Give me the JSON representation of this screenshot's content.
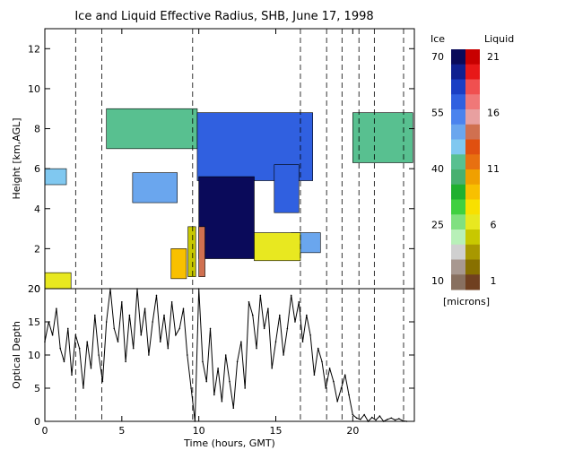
{
  "title": "Ice and Liquid Effective Radius, SHB, June 17, 1998",
  "chart_data": [
    {
      "type": "heatmap",
      "ylabel": "Height [km,AGL]",
      "yticks": [
        "0",
        "2",
        "4",
        "6",
        "8",
        "10",
        "12"
      ],
      "ylim": [
        0,
        13
      ],
      "xlim": [
        0,
        24
      ],
      "legend": {
        "ice_label": "Ice",
        "liquid_label": "Liquid",
        "units": "[microns]",
        "ice_ticks": [
          "70",
          "55",
          "40",
          "25",
          "10"
        ],
        "liquid_ticks": [
          "21",
          "16",
          "11",
          "6",
          "1"
        ],
        "ice_colors": [
          "#0a0a5a",
          "#102090",
          "#1a3ec4",
          "#3060e0",
          "#4b83ee",
          "#6aa6ee",
          "#80c8f0",
          "#58c090",
          "#48b070",
          "#20b030",
          "#40d040",
          "#80e080",
          "#b8f0b8",
          "#d0d0d0",
          "#a89890",
          "#887060"
        ],
        "liquid_colors": [
          "#c80000",
          "#e81818",
          "#f05050",
          "#f07878",
          "#e8a0a0",
          "#d07050",
          "#e05010",
          "#e87010",
          "#f0a000",
          "#f8c000",
          "#f8e000",
          "#e8e820",
          "#c8c800",
          "#a89800",
          "#887000",
          "#704020"
        ]
      },
      "dashed_times": [
        2.0,
        3.7,
        9.6,
        16.6,
        18.3,
        19.3,
        20.4,
        21.4,
        23.3
      ],
      "ice_clouds": [
        {
          "t": [
            4.0,
            9.9
          ],
          "z": [
            7.0,
            9.0
          ],
          "r": 42
        },
        {
          "t": [
            0.0,
            1.4
          ],
          "z": [
            5.2,
            6.0
          ],
          "r": 48
        },
        {
          "t": [
            5.7,
            8.6
          ],
          "z": [
            4.3,
            5.8
          ],
          "r": 50
        },
        {
          "t": [
            9.9,
            17.4
          ],
          "z": [
            5.4,
            8.8
          ],
          "r": 56
        },
        {
          "t": [
            10.0,
            13.6
          ],
          "z": [
            1.5,
            5.6
          ],
          "r": 68
        },
        {
          "t": [
            14.9,
            16.5
          ],
          "z": [
            3.8,
            6.2
          ],
          "r": 58
        },
        {
          "t": [
            20.0,
            23.9
          ],
          "z": [
            6.3,
            8.8
          ],
          "r": 42
        },
        {
          "t": [
            16.0,
            17.9
          ],
          "z": [
            1.8,
            2.8
          ],
          "r": 50
        }
      ],
      "liquid_clouds": [
        {
          "t": [
            0.0,
            1.7
          ],
          "z": [
            0.0,
            0.8
          ],
          "r": 7
        },
        {
          "t": [
            9.3,
            9.8
          ],
          "z": [
            0.6,
            3.1
          ],
          "r": 5
        },
        {
          "t": [
            10.0,
            10.4
          ],
          "z": [
            0.6,
            3.1
          ],
          "r": 14
        },
        {
          "t": [
            13.6,
            16.6
          ],
          "z": [
            1.4,
            2.8
          ],
          "r": 7
        },
        {
          "t": [
            8.2,
            9.2
          ],
          "z": [
            0.5,
            2.0
          ],
          "r": 9
        }
      ]
    },
    {
      "type": "line",
      "xlabel": "Time (hours, GMT)",
      "ylabel": "Optical Depth",
      "xticks": [
        "0",
        "5",
        "10",
        "15",
        "20"
      ],
      "yticks": [
        "0",
        "5",
        "10",
        "15",
        "20"
      ],
      "xlim": [
        0,
        24
      ],
      "ylim": [
        0,
        20
      ],
      "x": [
        0.0,
        0.25,
        0.5,
        0.75,
        1.0,
        1.25,
        1.5,
        1.75,
        2.0,
        2.25,
        2.5,
        2.75,
        3.0,
        3.25,
        3.5,
        3.75,
        4.0,
        4.25,
        4.5,
        4.75,
        5.0,
        5.25,
        5.5,
        5.75,
        6.0,
        6.25,
        6.5,
        6.75,
        7.0,
        7.25,
        7.5,
        7.75,
        8.0,
        8.25,
        8.5,
        8.75,
        9.0,
        9.25,
        9.5,
        9.75,
        10.0,
        10.25,
        10.5,
        10.75,
        11.0,
        11.25,
        11.5,
        11.75,
        12.0,
        12.25,
        12.5,
        12.75,
        13.0,
        13.25,
        13.5,
        13.75,
        14.0,
        14.25,
        14.5,
        14.75,
        15.0,
        15.25,
        15.5,
        15.75,
        16.0,
        16.25,
        16.5,
        16.75,
        17.0,
        17.25,
        17.5,
        17.75,
        18.0,
        18.25,
        18.5,
        18.75,
        19.0,
        19.25,
        19.5,
        19.75,
        20.0,
        20.25,
        20.5,
        20.75,
        21.0,
        21.25,
        21.5,
        21.75,
        22.0,
        22.25,
        22.5,
        22.75,
        23.0,
        23.25,
        23.5
      ],
      "values": [
        12,
        15,
        13,
        17,
        11,
        9,
        14,
        7,
        13,
        11,
        5,
        12,
        8,
        16,
        10,
        6,
        15,
        20,
        14,
        12,
        18,
        9,
        16,
        11,
        20,
        13,
        17,
        10,
        15,
        19,
        12,
        16,
        11,
        18,
        13,
        14,
        17,
        10,
        5,
        0,
        20,
        9,
        6,
        14,
        4,
        8,
        3,
        10,
        6,
        2,
        9,
        12,
        5,
        18,
        16,
        11,
        19,
        14,
        17,
        8,
        12,
        16,
        10,
        14,
        19,
        15,
        18,
        12,
        16,
        13,
        7,
        11,
        9,
        5,
        8,
        6,
        3,
        5,
        7,
        4,
        1,
        0.5,
        0.3,
        1,
        0,
        0.6,
        0.2,
        0.8,
        0,
        0.3,
        0.5,
        0.2,
        0.4,
        0.1,
        0
      ]
    }
  ]
}
